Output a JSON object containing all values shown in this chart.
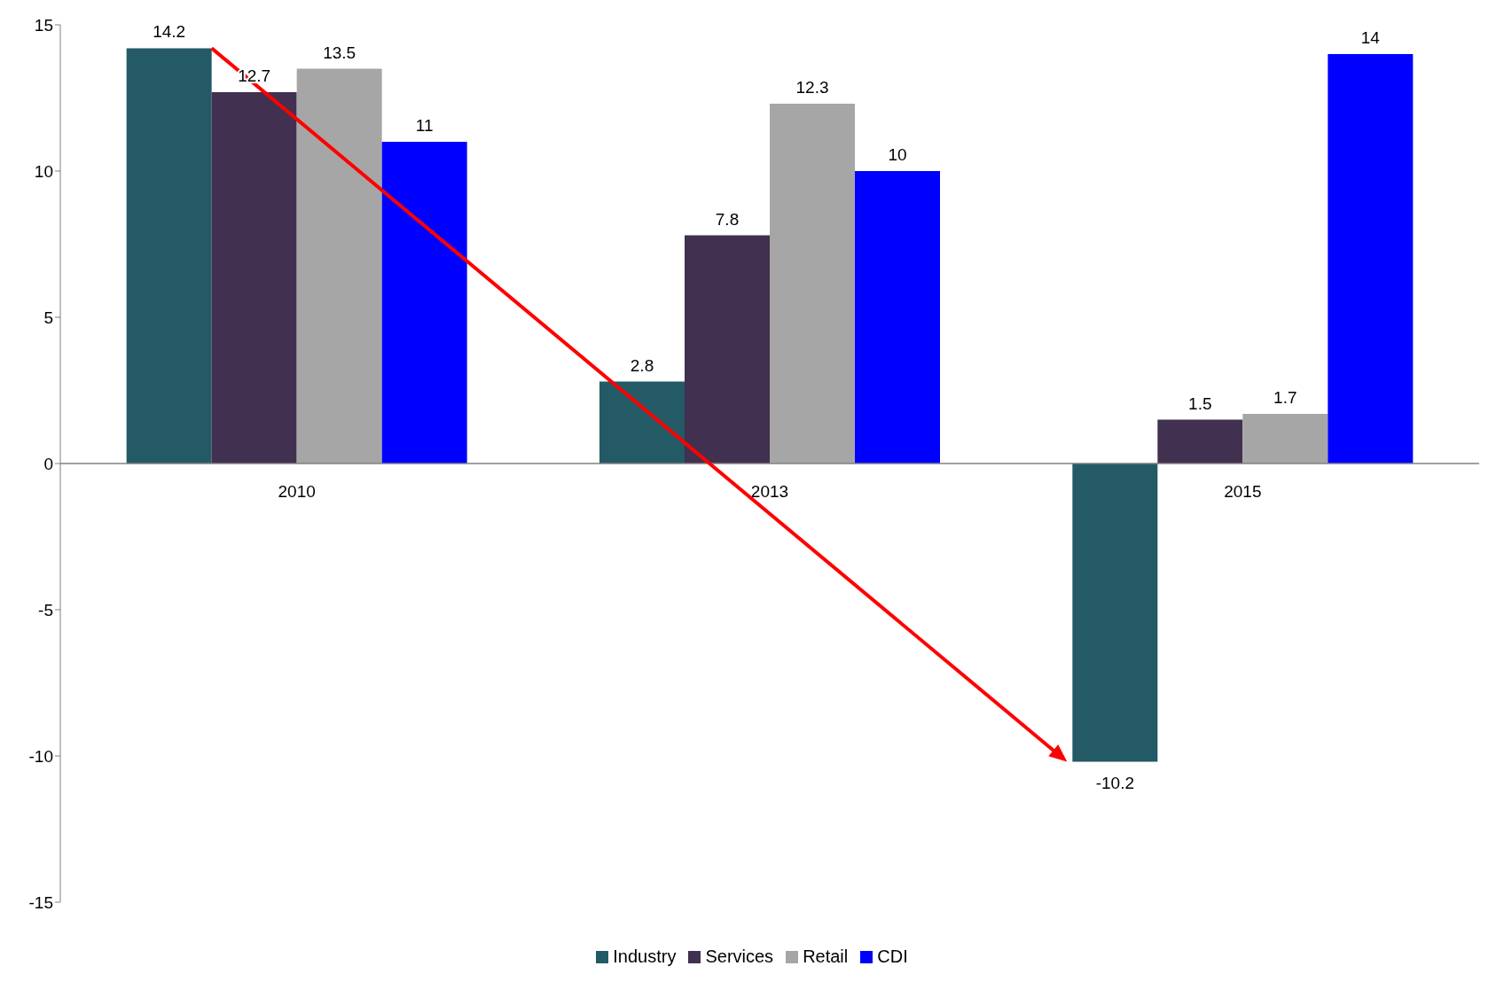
{
  "chart_data": {
    "type": "bar",
    "categories": [
      "2010",
      "2013",
      "2015"
    ],
    "series": [
      {
        "name": "Industry",
        "color": "#235a66",
        "values": [
          14.2,
          2.8,
          -10.2
        ]
      },
      {
        "name": "Services",
        "color": "#41304f",
        "values": [
          12.7,
          7.8,
          1.5
        ]
      },
      {
        "name": "Retail",
        "color": "#a6a6a6",
        "values": [
          13.5,
          12.3,
          1.7
        ]
      },
      {
        "name": "CDI",
        "color": "#0000ff",
        "values": [
          11,
          10,
          14
        ]
      }
    ],
    "ylim": [
      -15,
      15
    ],
    "yticks": [
      -15,
      -10,
      -5,
      0,
      5,
      10,
      15
    ],
    "legend": "bottom",
    "data_labels": true
  }
}
